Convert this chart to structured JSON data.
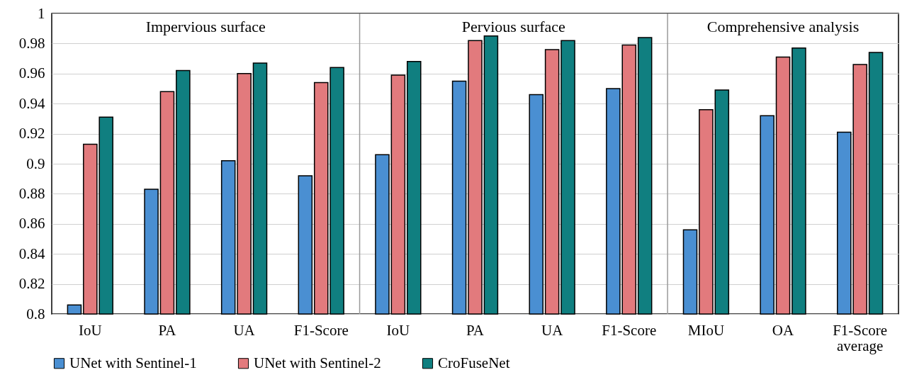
{
  "chart_data": {
    "type": "bar",
    "categories": [
      "IoU",
      "PA",
      "UA",
      "F1-Score",
      "IoU",
      "PA",
      "UA",
      "F1-Score",
      "MIoU",
      "OA",
      "F1-Score average"
    ],
    "series": [
      {
        "name": "UNet with Sentinel-1",
        "color": "#4a8fd2",
        "values": [
          0.806,
          0.883,
          0.902,
          0.892,
          0.906,
          0.955,
          0.946,
          0.95,
          0.856,
          0.932,
          0.921
        ]
      },
      {
        "name": "UNet with Sentinel-2",
        "color": "#e27a7d",
        "values": [
          0.913,
          0.948,
          0.96,
          0.954,
          0.959,
          0.982,
          0.976,
          0.979,
          0.936,
          0.971,
          0.966
        ]
      },
      {
        "name": "CroFuseNet",
        "color": "#107f80",
        "values": [
          0.931,
          0.962,
          0.967,
          0.964,
          0.968,
          0.985,
          0.982,
          0.984,
          0.949,
          0.977,
          0.974
        ]
      }
    ],
    "ylim": [
      0.8,
      1
    ],
    "yticks": [
      0.8,
      0.82,
      0.84,
      0.86,
      0.88,
      0.9,
      0.92,
      0.94,
      0.96,
      0.98,
      1
    ],
    "grid": "y",
    "legend": "bottom",
    "annotations": [
      "Impervious surface",
      "Pervious surface",
      "Comprehensive analysis"
    ]
  }
}
